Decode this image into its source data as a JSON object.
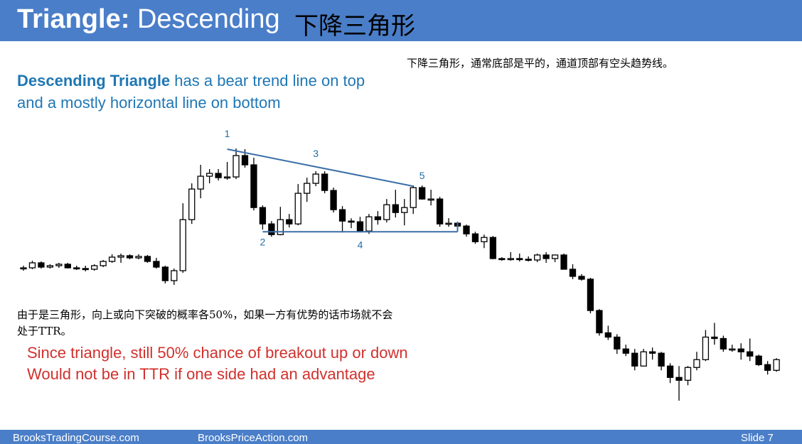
{
  "header": {
    "title_bold": "Triangle:",
    "title_rest": "Descending",
    "title_zh": "下降三角形"
  },
  "notes": {
    "zh_top": "下降三角形，通常底部是平的，通道顶部有空头趋势线。",
    "desc_bold": "Descending Triangle",
    "desc_line1_rest": " has a bear trend line on top",
    "desc_line2": "and a mostly horizontal line on bottom",
    "zh_body": "由于是三角形，向上或向下突破的概率各50%，如果一方有优势的话市场就不会处于TTR。",
    "red_line1": "Since triangle, still 50% chance of breakout up or down",
    "red_line2": "Would not be in TTR if one side had an advantage"
  },
  "footer": {
    "left": "BrooksTradingCourse.com",
    "middle": "BrooksPriceAction.com",
    "right": "Slide  7"
  },
  "colors": {
    "header_bg": "#4a7ec8",
    "trend_line": "#3a6ea8",
    "label_color": "#1f6fa8",
    "red_text": "#d0312d"
  },
  "chart_data": {
    "type": "candlestick",
    "title": "",
    "xlabel": "",
    "ylabel": "",
    "ylim": [
      0,
      100
    ],
    "grid": false,
    "bars": [
      {
        "o": 51.5,
        "h": 52.7,
        "l": 50.6,
        "c": 51.8
      },
      {
        "o": 51.8,
        "h": 54.8,
        "l": 51.2,
        "c": 53.9
      },
      {
        "o": 53.9,
        "h": 54.5,
        "l": 51.5,
        "c": 52.1
      },
      {
        "o": 52.1,
        "h": 53.3,
        "l": 51.5,
        "c": 52.7
      },
      {
        "o": 52.7,
        "h": 53.9,
        "l": 51.8,
        "c": 53.3
      },
      {
        "o": 53.3,
        "h": 53.9,
        "l": 51.5,
        "c": 51.8
      },
      {
        "o": 51.8,
        "h": 52.7,
        "l": 50.9,
        "c": 51.5
      },
      {
        "o": 51.5,
        "h": 52.7,
        "l": 50.3,
        "c": 51.2
      },
      {
        "o": 51.2,
        "h": 53.3,
        "l": 50.6,
        "c": 52.7
      },
      {
        "o": 52.7,
        "h": 55.1,
        "l": 52.1,
        "c": 54.5
      },
      {
        "o": 54.5,
        "h": 57.5,
        "l": 53.9,
        "c": 56.3
      },
      {
        "o": 56.3,
        "h": 57.8,
        "l": 53.9,
        "c": 56.9
      },
      {
        "o": 56.9,
        "h": 57.5,
        "l": 55.4,
        "c": 56.0
      },
      {
        "o": 56.0,
        "h": 57.5,
        "l": 55.4,
        "c": 56.6
      },
      {
        "o": 56.6,
        "h": 57.2,
        "l": 53.9,
        "c": 54.5
      },
      {
        "o": 54.5,
        "h": 56.0,
        "l": 51.5,
        "c": 52.1
      },
      {
        "o": 52.1,
        "h": 52.7,
        "l": 45.2,
        "c": 46.4
      },
      {
        "o": 46.4,
        "h": 51.5,
        "l": 44.6,
        "c": 50.6
      },
      {
        "o": 50.6,
        "h": 79.0,
        "l": 49.7,
        "c": 72.1
      },
      {
        "o": 72.1,
        "h": 87.4,
        "l": 70.3,
        "c": 85.0
      },
      {
        "o": 85.0,
        "h": 95.2,
        "l": 81.1,
        "c": 90.4
      },
      {
        "o": 90.4,
        "h": 93.4,
        "l": 87.4,
        "c": 91.6
      },
      {
        "o": 91.6,
        "h": 93.4,
        "l": 88.6,
        "c": 89.8
      },
      {
        "o": 89.8,
        "h": 96.4,
        "l": 88.9,
        "c": 90.1
      },
      {
        "o": 90.1,
        "h": 102.1,
        "l": 89.2,
        "c": 99.1
      },
      {
        "o": 99.1,
        "h": 101.8,
        "l": 94.0,
        "c": 95.2
      },
      {
        "o": 95.2,
        "h": 98.2,
        "l": 76.0,
        "c": 77.2
      },
      {
        "o": 77.2,
        "h": 78.1,
        "l": 67.9,
        "c": 70.3
      },
      {
        "o": 70.3,
        "h": 71.5,
        "l": 64.9,
        "c": 65.8
      },
      {
        "o": 65.8,
        "h": 77.5,
        "l": 65.5,
        "c": 72.1
      },
      {
        "o": 72.1,
        "h": 74.5,
        "l": 68.8,
        "c": 70.3
      },
      {
        "o": 70.3,
        "h": 87.1,
        "l": 69.7,
        "c": 83.2
      },
      {
        "o": 83.2,
        "h": 89.8,
        "l": 79.6,
        "c": 87.4
      },
      {
        "o": 87.4,
        "h": 92.5,
        "l": 86.2,
        "c": 91.3
      },
      {
        "o": 91.3,
        "h": 92.5,
        "l": 83.2,
        "c": 84.4
      },
      {
        "o": 84.4,
        "h": 85.6,
        "l": 75.1,
        "c": 76.3
      },
      {
        "o": 76.3,
        "h": 77.8,
        "l": 66.7,
        "c": 71.5
      },
      {
        "o": 71.5,
        "h": 72.7,
        "l": 68.5,
        "c": 71.2
      },
      {
        "o": 71.2,
        "h": 73.3,
        "l": 66.7,
        "c": 67.3
      },
      {
        "o": 67.3,
        "h": 74.5,
        "l": 66.1,
        "c": 73.3
      },
      {
        "o": 73.3,
        "h": 75.7,
        "l": 70.0,
        "c": 72.1
      },
      {
        "o": 72.1,
        "h": 80.8,
        "l": 70.9,
        "c": 78.4
      },
      {
        "o": 78.4,
        "h": 84.7,
        "l": 73.0,
        "c": 75.1
      },
      {
        "o": 75.1,
        "h": 80.8,
        "l": 69.7,
        "c": 77.2
      },
      {
        "o": 77.2,
        "h": 86.5,
        "l": 74.5,
        "c": 85.6
      },
      {
        "o": 85.6,
        "h": 86.5,
        "l": 80.5,
        "c": 80.8
      },
      {
        "o": 80.8,
        "h": 84.7,
        "l": 78.1,
        "c": 80.8
      },
      {
        "o": 80.8,
        "h": 81.7,
        "l": 69.1,
        "c": 70.3
      },
      {
        "o": 70.3,
        "h": 72.7,
        "l": 69.1,
        "c": 70.6
      },
      {
        "o": 70.6,
        "h": 71.2,
        "l": 68.5,
        "c": 69.4
      },
      {
        "o": 69.4,
        "h": 70.0,
        "l": 64.9,
        "c": 66.1
      },
      {
        "o": 66.1,
        "h": 67.0,
        "l": 61.9,
        "c": 62.8
      },
      {
        "o": 62.8,
        "h": 65.8,
        "l": 60.1,
        "c": 64.6
      },
      {
        "o": 64.6,
        "h": 65.2,
        "l": 55.4,
        "c": 55.7
      },
      {
        "o": 55.7,
        "h": 56.3,
        "l": 54.8,
        "c": 55.4
      },
      {
        "o": 55.4,
        "h": 58.4,
        "l": 54.8,
        "c": 55.7
      },
      {
        "o": 55.7,
        "h": 57.8,
        "l": 54.5,
        "c": 55.4
      },
      {
        "o": 55.4,
        "h": 56.6,
        "l": 54.5,
        "c": 55.1
      },
      {
        "o": 55.1,
        "h": 57.8,
        "l": 54.2,
        "c": 57.2
      },
      {
        "o": 57.2,
        "h": 58.4,
        "l": 53.9,
        "c": 55.7
      },
      {
        "o": 55.7,
        "h": 57.2,
        "l": 54.2,
        "c": 57.2
      },
      {
        "o": 57.2,
        "h": 57.8,
        "l": 51.2,
        "c": 51.2
      },
      {
        "o": 51.2,
        "h": 53.3,
        "l": 47.0,
        "c": 48.2
      },
      {
        "o": 48.2,
        "h": 49.1,
        "l": 46.4,
        "c": 47.0
      },
      {
        "o": 47.0,
        "h": 47.6,
        "l": 32.6,
        "c": 33.8
      },
      {
        "o": 33.8,
        "h": 34.4,
        "l": 23.2,
        "c": 24.4
      },
      {
        "o": 24.4,
        "h": 27.4,
        "l": 21.4,
        "c": 22.6
      },
      {
        "o": 22.6,
        "h": 23.8,
        "l": 15.5,
        "c": 17.6
      },
      {
        "o": 17.6,
        "h": 19.4,
        "l": 14.6,
        "c": 15.8
      },
      {
        "o": 15.8,
        "h": 17.6,
        "l": 8.6,
        "c": 10.4
      },
      {
        "o": 10.4,
        "h": 17.6,
        "l": 10.4,
        "c": 16.4
      },
      {
        "o": 16.4,
        "h": 18.2,
        "l": 13.1,
        "c": 15.8
      },
      {
        "o": 15.8,
        "h": 16.4,
        "l": 8.6,
        "c": 10.4
      },
      {
        "o": 10.4,
        "h": 11.6,
        "l": 3.2,
        "c": 5.6
      },
      {
        "o": 5.6,
        "h": 10.4,
        "l": -4.2,
        "c": 4.4
      },
      {
        "o": 4.4,
        "h": 10.4,
        "l": 2.3,
        "c": 9.8
      },
      {
        "o": 9.8,
        "h": 16.4,
        "l": 8.6,
        "c": 13.1
      },
      {
        "o": 13.1,
        "h": 25.6,
        "l": 12.5,
        "c": 22.6
      },
      {
        "o": 22.6,
        "h": 28.6,
        "l": 19.4,
        "c": 22.0
      },
      {
        "o": 22.0,
        "h": 23.2,
        "l": 16.4,
        "c": 17.6
      },
      {
        "o": 17.6,
        "h": 19.4,
        "l": 16.4,
        "c": 17.6
      },
      {
        "o": 17.6,
        "h": 20.0,
        "l": 13.1,
        "c": 16.4
      },
      {
        "o": 16.4,
        "h": 22.0,
        "l": 12.5,
        "c": 14.6
      },
      {
        "o": 14.6,
        "h": 15.2,
        "l": 10.4,
        "c": 11.0
      },
      {
        "o": 11.0,
        "h": 12.5,
        "l": 6.8,
        "c": 8.6
      },
      {
        "o": 8.6,
        "h": 13.7,
        "l": 8.0,
        "c": 13.1
      }
    ],
    "trend_line": {
      "from": {
        "bar": 23,
        "price": 101.8
      },
      "to": {
        "bar": 44,
        "price": 86.2
      }
    },
    "support_line": {
      "from": {
        "bar": 27,
        "price": 67.0
      },
      "to": {
        "bar": 49,
        "price": 67.0
      }
    },
    "annotations": [
      {
        "text": "1",
        "bar": 23,
        "price": 106.9
      },
      {
        "text": "2",
        "bar": 27,
        "price": 61.3
      },
      {
        "text": "3",
        "bar": 33,
        "price": 98.5
      },
      {
        "text": "4",
        "bar": 38,
        "price": 60.1
      },
      {
        "text": "5",
        "bar": 45,
        "price": 89.2
      }
    ]
  }
}
